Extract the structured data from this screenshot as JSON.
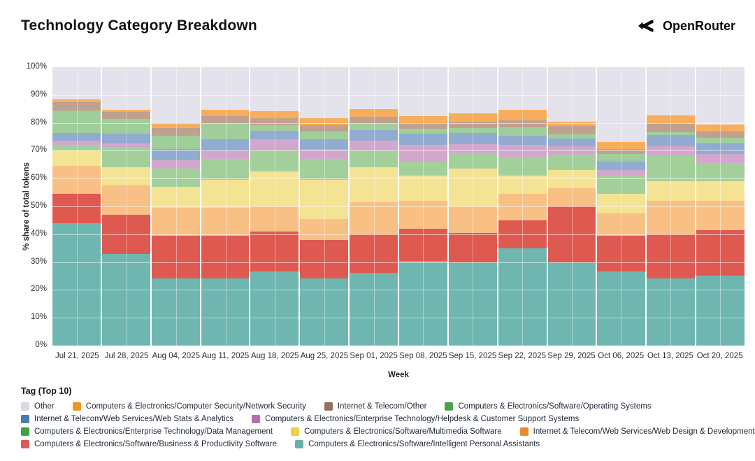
{
  "header": {
    "title": "Technology Category Breakdown",
    "brand": "OpenRouter"
  },
  "chart_data": {
    "type": "bar",
    "subtype": "stacked-100-percent",
    "title": "Technology Category Breakdown",
    "xlabel": "Week",
    "ylabel": "% share of total tokens",
    "ylim": [
      0,
      100
    ],
    "y_ticks": [
      "0%",
      "10%",
      "20%",
      "30%",
      "40%",
      "50%",
      "60%",
      "70%",
      "80%",
      "90%",
      "100%"
    ],
    "grid": true,
    "plot_bg": "#e8e8ef",
    "categories": [
      "Jul 21, 2025",
      "Jul 28, 2025",
      "Aug 04, 2025",
      "Aug 11, 2025",
      "Aug 18, 2025",
      "Aug 25, 2025",
      "Sep 01, 2025",
      "Sep 08, 2025",
      "Sep 15, 2025",
      "Sep 22, 2025",
      "Sep 29, 2025",
      "Oct 06, 2025",
      "Oct 13, 2025",
      "Oct 20, 2025"
    ],
    "stack_order_note": "series listed bottom-to-top as stacked",
    "series": [
      {
        "name": "Computers & Electronics/Software/Intelligent Personal Assistants",
        "color": "#6fb6b1",
        "values": [
          44,
          33,
          24,
          24,
          26.5,
          24,
          26,
          30.5,
          30,
          35,
          30,
          26.5,
          24,
          25
        ]
      },
      {
        "name": "Computers & Electronics/Software/Business & Productivity Software",
        "color": "#de5a51",
        "values": [
          10.5,
          14,
          15.5,
          15.5,
          14.5,
          14,
          14,
          11.5,
          10.5,
          10,
          20,
          13,
          16,
          16.5
        ]
      },
      {
        "name": "Internet & Telecom/Web Services/Web Design & Development",
        "color": "#f9c085",
        "values": [
          10,
          10.5,
          10,
          10,
          9,
          7.5,
          11.5,
          10,
          9.5,
          9.5,
          6.5,
          8,
          12,
          10.5
        ]
      },
      {
        "name": "Computers & Electronics/Software/Multimedia Software",
        "color": "#f4e392",
        "values": [
          5.5,
          6.5,
          7.5,
          10,
          12.5,
          14,
          12.5,
          9,
          13.5,
          6.5,
          6.5,
          7,
          7,
          7
        ]
      },
      {
        "name": "Computers & Electronics/Enterprise Technology/Data Management",
        "color": "#a3d09a",
        "values": [
          2,
          7,
          6.5,
          7.5,
          7.5,
          7.5,
          6,
          5,
          5.5,
          6.5,
          5.5,
          6.5,
          9,
          6.5
        ]
      },
      {
        "name": "Computers & Electronics/Enterprise Technology/Helpdesk & Customer Support Systems",
        "color": "#d2a7cd",
        "values": [
          1.5,
          1.7,
          3,
          3.2,
          4.2,
          3.7,
          3.7,
          6,
          3.4,
          4.5,
          3,
          2,
          3.7,
          3.3
        ]
      },
      {
        "name": "Internet & Telecom/Web Services/Web Stats & Analytics",
        "color": "#92abd1",
        "values": [
          3,
          3.3,
          4.2,
          3.8,
          2.9,
          3.4,
          3.8,
          4.2,
          4.1,
          3.4,
          2.9,
          3,
          3.8,
          3.8
        ]
      },
      {
        "name": "Computers & Electronics/Software/Operating Systems",
        "color": "#a0ce9a",
        "values": [
          8,
          5.5,
          4.6,
          5.9,
          2.1,
          2.9,
          2.4,
          1.7,
          1.7,
          2.9,
          1.6,
          2.9,
          1.2,
          2.1
        ]
      },
      {
        "name": "Internet & Telecom/Other",
        "color": "#c0a08f",
        "values": [
          3,
          2.5,
          2.9,
          2.5,
          2.5,
          2.1,
          2.2,
          2.1,
          2.1,
          2.5,
          3,
          1.7,
          3,
          2.1
        ]
      },
      {
        "name": "Computers & Electronics/Computer Security/Network Security",
        "color": "#f7ad5c",
        "values": [
          1,
          0.7,
          1.7,
          2.2,
          2.5,
          2.5,
          2.8,
          2.5,
          3,
          3.8,
          1.4,
          2.5,
          2.9,
          2.5
        ]
      },
      {
        "name": "Other",
        "color": "#e4e3ec",
        "values": [
          11.5,
          15.3,
          20.1,
          15.4,
          15.8,
          18.4,
          15.1,
          17.5,
          16.7,
          15.4,
          19.6,
          26.9,
          17.4,
          20.7
        ]
      }
    ],
    "legend": {
      "title": "Tag (Top 10)",
      "position": "bottom",
      "rows": [
        [
          {
            "label": "Other",
            "color": "#d9d8e4"
          },
          {
            "label": "Computers & Electronics/Computer Security/Network Security",
            "color": "#f0941f"
          },
          {
            "label": "Internet & Telecom/Other",
            "color": "#97705c"
          },
          {
            "label": "Computers & Electronics/Software/Operating Systems",
            "color": "#4ba24b"
          }
        ],
        [
          {
            "label": "Internet & Telecom/Web Services/Web Stats & Analytics",
            "color": "#4c7cab"
          },
          {
            "label": "Computers & Electronics/Enterprise Technology/Helpdesk & Customer Support Systems",
            "color": "#b671a6"
          }
        ],
        [
          {
            "label": "Computers & Electronics/Enterprise Technology/Data Management",
            "color": "#3fa241"
          },
          {
            "label": "Computers & Electronics/Software/Multimedia Software",
            "color": "#f2cf42"
          },
          {
            "label": "Internet & Telecom/Web Services/Web Design & Development",
            "color": "#eb8a2d"
          }
        ],
        [
          {
            "label": "Computers & Electronics/Software/Business & Productivity Software",
            "color": "#d95a52"
          },
          {
            "label": "Computers & Electronics/Software/Intelligent Personal Assistants",
            "color": "#68b1ab"
          }
        ]
      ]
    }
  }
}
